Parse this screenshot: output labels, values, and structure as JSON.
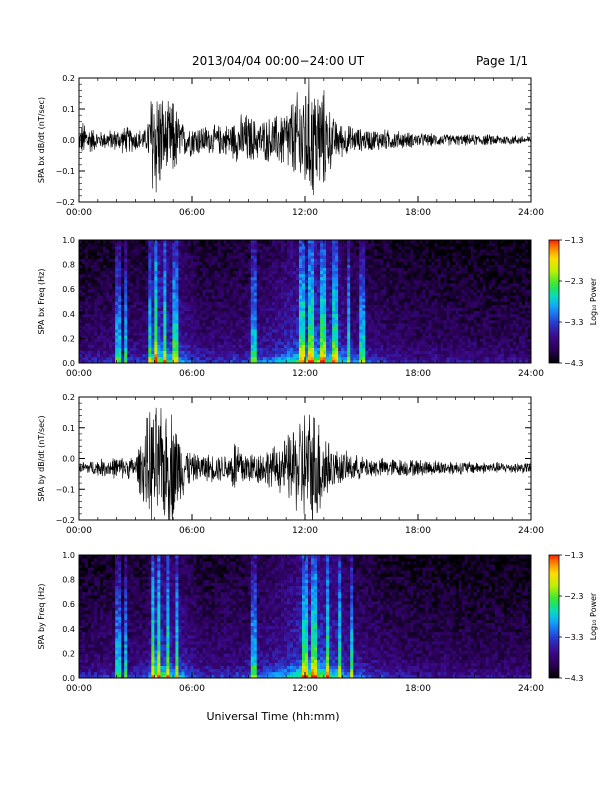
{
  "header": {
    "title": "2013/04/04  00:00−24:00 UT",
    "page": "Page 1/1"
  },
  "footer": {
    "xlabel": "Universal Time (hh:mm)"
  },
  "colorbar_colors": [
    "#000000",
    "#2b0055",
    "#3a0a8a",
    "#2a3fd0",
    "#1aa0ff",
    "#00e0d0",
    "#20e840",
    "#b8f000",
    "#ffe000",
    "#ff9000",
    "#ff2000"
  ],
  "chart_data": [
    {
      "type": "line",
      "name": "bx_ts",
      "ylabel": "SPA bx dB/dt (nT/sec)",
      "x_ticks": [
        "00:00",
        "06:00",
        "12:00",
        "18:00",
        "24:00"
      ],
      "y_ticks": [
        "0.2",
        "0.1",
        "0.0",
        "−0.1",
        "−0.2"
      ],
      "xlim": [
        0,
        24
      ],
      "ylim": [
        -0.2,
        0.2
      ],
      "envelope": {
        "hours": [
          0,
          0.2,
          1.0,
          2.0,
          2.5,
          3.0,
          3.6,
          3.9,
          4.2,
          4.6,
          5.0,
          5.5,
          6.0,
          7.0,
          8.0,
          8.8,
          9.5,
          10.5,
          11.0,
          11.5,
          12.0,
          12.5,
          13.0,
          13.5,
          14.0,
          15.0,
          16.0,
          18.0,
          20.0,
          22.0,
          24.0
        ],
        "amplitude": [
          0.03,
          0.07,
          0.03,
          0.04,
          0.05,
          0.04,
          0.04,
          0.22,
          0.22,
          0.12,
          0.15,
          0.06,
          0.06,
          0.05,
          0.06,
          0.1,
          0.07,
          0.09,
          0.12,
          0.16,
          0.22,
          0.22,
          0.18,
          0.08,
          0.06,
          0.04,
          0.04,
          0.025,
          0.02,
          0.02,
          0.015
        ]
      },
      "offset": 0.0
    },
    {
      "type": "heatmap",
      "name": "bx_spec",
      "ylabel": "SPA bx Freq (Hz)",
      "x_ticks": [
        "00:00",
        "06:00",
        "12:00",
        "18:00",
        "24:00"
      ],
      "y_ticks": [
        "1.0",
        "0.8",
        "0.6",
        "0.4",
        "0.2",
        "0.0"
      ],
      "xlim": [
        0,
        24
      ],
      "ylim": [
        0,
        1
      ],
      "colorbar_label": "Log₁₀ Power",
      "colorbar_ticks": [
        "−1.3",
        "−2.3",
        "−3.3",
        "−4.3"
      ],
      "clim": [
        -4.3,
        -1.3
      ],
      "bright_bands_hours": [
        2.1,
        2.5,
        3.8,
        4.1,
        4.6,
        5.1,
        9.3,
        11.8,
        12.3,
        13.0,
        13.6,
        14.3,
        15.0
      ]
    },
    {
      "type": "line",
      "name": "by_ts",
      "ylabel": "SPA by dB/dt (nT/sec)",
      "x_ticks": [
        "00:00",
        "06:00",
        "12:00",
        "18:00",
        "24:00"
      ],
      "y_ticks": [
        "0.2",
        "0.1",
        "0.0",
        "−0.1",
        "−0.2"
      ],
      "xlim": [
        0,
        24
      ],
      "ylim": [
        -0.2,
        0.2
      ],
      "envelope": {
        "hours": [
          0,
          1.0,
          2.0,
          3.0,
          3.8,
          4.1,
          4.5,
          4.9,
          5.4,
          6.0,
          7.0,
          8.0,
          8.3,
          8.6,
          9.0,
          9.5,
          10.5,
          11.0,
          11.5,
          12.0,
          12.5,
          13.0,
          13.5,
          14.0,
          15.0,
          16.0,
          18.0,
          20.0,
          22.0,
          24.0
        ],
        "amplitude": [
          0.02,
          0.03,
          0.04,
          0.04,
          0.22,
          0.22,
          0.2,
          0.22,
          0.12,
          0.05,
          0.05,
          0.05,
          0.12,
          0.08,
          0.06,
          0.06,
          0.08,
          0.11,
          0.16,
          0.22,
          0.22,
          0.16,
          0.07,
          0.06,
          0.04,
          0.035,
          0.03,
          0.025,
          0.02,
          0.02
        ]
      },
      "offset": -0.03
    },
    {
      "type": "heatmap",
      "name": "by_spec",
      "ylabel": "SPA by Freq (Hz)",
      "x_ticks": [
        "00:00",
        "06:00",
        "12:00",
        "18:00",
        "24:00"
      ],
      "y_ticks": [
        "1.0",
        "0.8",
        "0.6",
        "0.4",
        "0.2",
        "0.0"
      ],
      "xlim": [
        0,
        24
      ],
      "ylim": [
        0,
        1
      ],
      "colorbar_label": "Log₁₀ Power",
      "colorbar_ticks": [
        "−1.3",
        "−2.3",
        "−3.3",
        "−4.3"
      ],
      "clim": [
        -4.3,
        -1.3
      ],
      "bright_bands_hours": [
        2.1,
        2.5,
        3.9,
        4.2,
        4.7,
        5.2,
        9.3,
        12.0,
        12.5,
        13.2,
        13.8,
        14.5
      ]
    }
  ]
}
